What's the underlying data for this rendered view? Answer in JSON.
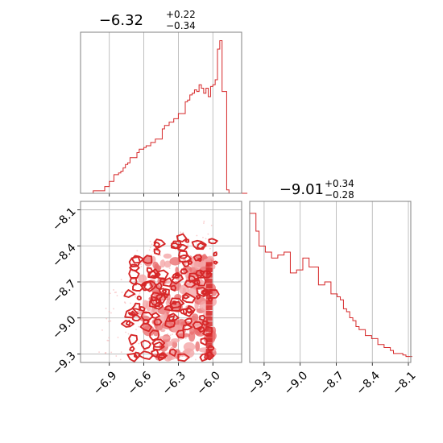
{
  "colors": {
    "main": "#d62728",
    "fill_light": "#f4a6a7",
    "fill_mid": "#ea6f70",
    "grid": "#b0b0b0",
    "frame": "#808080"
  },
  "chart_data": [
    {
      "type": "histogram",
      "panel": "top-left",
      "title": {
        "value": "−6.32",
        "upper": "+0.22",
        "lower": "−0.34"
      },
      "xlim": [
        -7.15,
        -5.75
      ],
      "x_ticks": [
        -6.9,
        -6.6,
        -6.3,
        -6.0
      ],
      "bin_edges_start": -7.1,
      "bin_width": 0.02,
      "counts": [
        0,
        0,
        0,
        3,
        3,
        3,
        3,
        3,
        8,
        8,
        14,
        14,
        22,
        22,
        24,
        26,
        30,
        34,
        36,
        42,
        42,
        42,
        48,
        52,
        52,
        54,
        56,
        56,
        60,
        60,
        64,
        64,
        64,
        76,
        80,
        80,
        84,
        84,
        88,
        88,
        94,
        94,
        94,
        108,
        110,
        116,
        118,
        122,
        120,
        128,
        124,
        118,
        124,
        114,
        126,
        128,
        134,
        170,
        180,
        120,
        120,
        4,
        0,
        0,
        0,
        0,
        0,
        0,
        0,
        0
      ],
      "ymax": 190
    },
    {
      "type": "histogram",
      "panel": "bottom-right",
      "title": {
        "value": "−9.01",
        "upper": "+0.34",
        "lower": "−0.28"
      },
      "xlim": [
        -9.42,
        -8.08
      ],
      "x_ticks": [
        -9.3,
        -9.0,
        -8.7,
        -8.4,
        -8.1
      ],
      "x_tick_labels": [
        "−9.3",
        "−9.0",
        "−8.7",
        "−8.4",
        "−8.1"
      ],
      "bin_edges_start": -9.42,
      "bin_width": 0.026,
      "counts": [
        100,
        100,
        88,
        78,
        78,
        74,
        74,
        70,
        70,
        72,
        72,
        74,
        74,
        60,
        60,
        62,
        62,
        70,
        70,
        64,
        64,
        64,
        52,
        52,
        54,
        54,
        46,
        46,
        44,
        42,
        36,
        34,
        30,
        28,
        24,
        22,
        22,
        18,
        18,
        16,
        16,
        12,
        12,
        10,
        10,
        8,
        6,
        6,
        6,
        5,
        4,
        4
      ],
      "ymax": 108
    },
    {
      "type": "contour",
      "panel": "bottom-left",
      "xlim": [
        -7.15,
        -5.75
      ],
      "ylim": [
        -9.37,
        -8.03
      ],
      "x_ticks": [
        -6.9,
        -6.6,
        -6.3,
        -6.0
      ],
      "x_tick_labels": [
        "−6.9",
        "−6.6",
        "−6.3",
        "−6.0"
      ],
      "y_ticks": [
        -8.1,
        -8.4,
        -8.7,
        -9.0,
        -9.3
      ],
      "y_tick_labels": [
        "−8.1",
        "−8.4",
        "−8.7",
        "−9.0",
        "−9.3"
      ],
      "grid": true
    }
  ]
}
